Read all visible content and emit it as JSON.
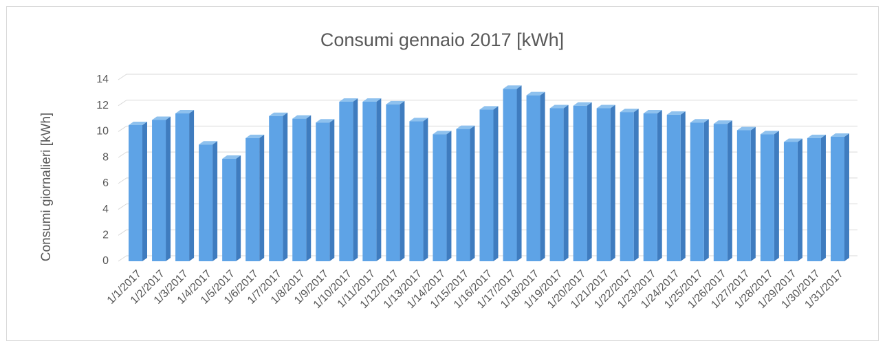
{
  "chart_data": {
    "type": "bar",
    "title": "Consumi gennaio 2017 [kWh]",
    "y_label": "Consumi giornalieri [kWh]",
    "categories": [
      "1/1/2017",
      "1/2/2017",
      "1/3/2017",
      "1/4/2017",
      "1/5/2017",
      "1/6/2017",
      "1/7/2017",
      "1/8/2017",
      "1/9/2017",
      "1/10/2017",
      "1/11/2017",
      "1/12/2017",
      "1/13/2017",
      "1/14/2017",
      "1/15/2017",
      "1/16/2017",
      "1/17/2017",
      "1/18/2017",
      "1/19/2017",
      "1/20/2017",
      "1/21/2017",
      "1/22/2017",
      "1/23/2017",
      "1/24/2017",
      "1/25/2017",
      "1/26/2017",
      "1/27/2017",
      "1/28/2017",
      "1/29/2017",
      "1/30/2017",
      "1/31/2017"
    ],
    "values": [
      10.5,
      10.9,
      11.4,
      9.0,
      7.9,
      9.5,
      11.2,
      11.0,
      10.7,
      12.3,
      12.3,
      12.1,
      10.8,
      9.8,
      10.2,
      11.7,
      13.3,
      12.8,
      11.8,
      12.0,
      11.8,
      11.5,
      11.4,
      11.3,
      10.7,
      10.6,
      10.1,
      9.8,
      9.2,
      9.5,
      9.6
    ],
    "color": "#5b9bd5",
    "ylim": [
      0,
      14
    ],
    "yticks": [
      0,
      2,
      4,
      6,
      8,
      10,
      12,
      14
    ],
    "grid": true
  }
}
